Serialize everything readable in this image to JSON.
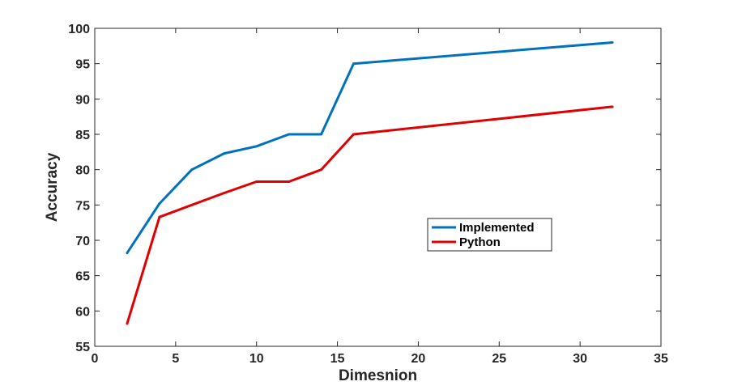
{
  "chart_data": {
    "type": "line",
    "xlabel": "Dimesnion",
    "ylabel": "Accuracy",
    "xlim": [
      0,
      35
    ],
    "ylim": [
      55,
      100
    ],
    "xticks": [
      0,
      5,
      10,
      15,
      20,
      25,
      30,
      35
    ],
    "yticks": [
      55,
      60,
      65,
      70,
      75,
      80,
      85,
      90,
      95,
      100
    ],
    "grid": false,
    "legend_position": "center-right",
    "series": [
      {
        "name": "Implemented",
        "color": "#0072BD",
        "x": [
          2,
          4,
          6,
          8,
          10,
          12,
          14,
          16,
          32
        ],
        "y": [
          68.2,
          75.2,
          80.0,
          82.3,
          83.3,
          85.0,
          85.0,
          95.0,
          98.0
        ]
      },
      {
        "name": "Python",
        "color": "#E00000",
        "x": [
          2,
          4,
          6,
          8,
          10,
          12,
          14,
          16,
          32
        ],
        "y": [
          58.2,
          73.3,
          75.0,
          76.7,
          78.3,
          78.3,
          80.0,
          85.0,
          88.9
        ]
      }
    ]
  }
}
